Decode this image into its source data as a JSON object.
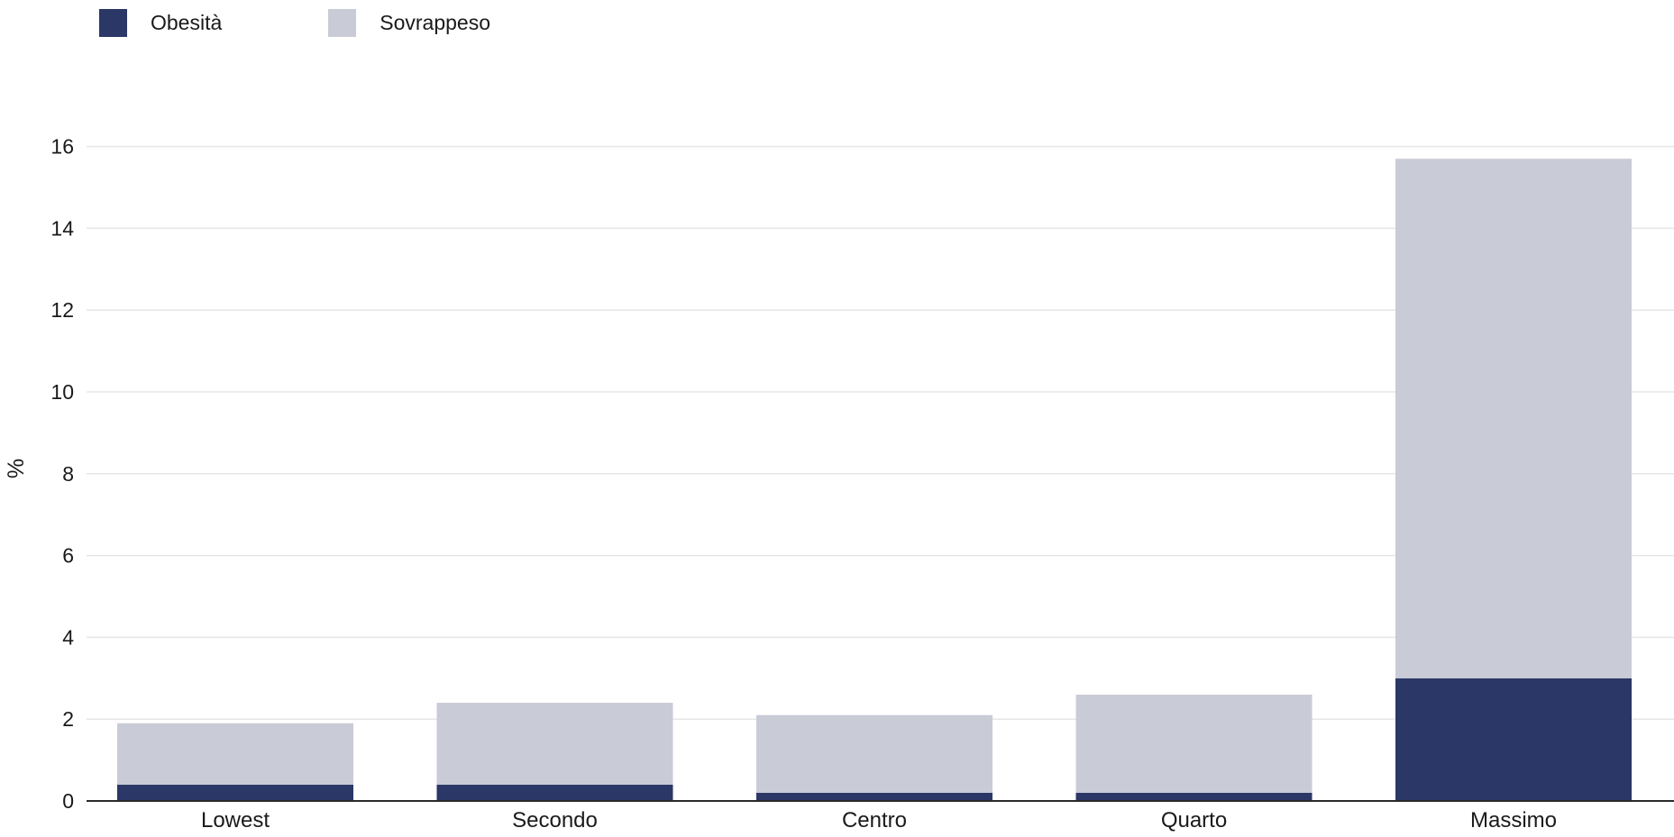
{
  "chart_data": {
    "type": "bar",
    "stacked": true,
    "categories": [
      "Lowest",
      "Secondo",
      "Centro",
      "Quarto",
      "Massimo"
    ],
    "series": [
      {
        "name": "Obesità",
        "color": "#2b3766",
        "values": [
          0.4,
          0.4,
          0.2,
          0.2,
          3.0
        ]
      },
      {
        "name": "Sovrappeso",
        "color": "#c9cbd7",
        "values": [
          1.5,
          2.0,
          1.9,
          2.4,
          12.7
        ]
      }
    ],
    "title": "",
    "xlabel": "",
    "ylabel": "%",
    "ylim": [
      0,
      16
    ],
    "yticks": [
      0,
      2,
      4,
      6,
      8,
      10,
      12,
      14,
      16
    ],
    "grid": true,
    "legend_position": "top-left"
  }
}
